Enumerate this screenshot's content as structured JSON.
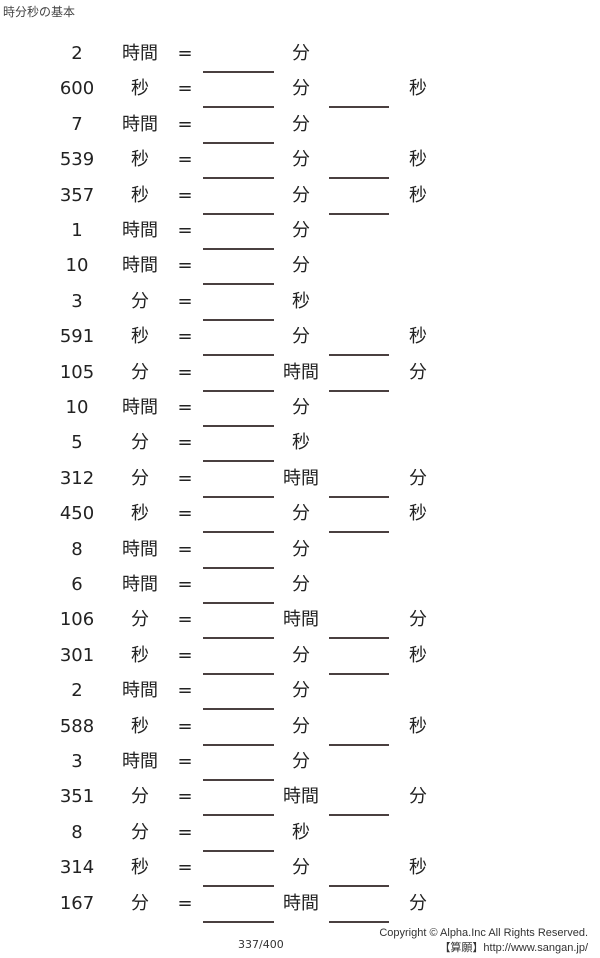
{
  "title": "時分秒の基本",
  "equals": "=",
  "rows": [
    {
      "n": "2",
      "u1": "時間",
      "u2": "分",
      "u3": ""
    },
    {
      "n": "600",
      "u1": "秒",
      "u2": "分",
      "u3": "秒"
    },
    {
      "n": "7",
      "u1": "時間",
      "u2": "分",
      "u3": ""
    },
    {
      "n": "539",
      "u1": "秒",
      "u2": "分",
      "u3": "秒"
    },
    {
      "n": "357",
      "u1": "秒",
      "u2": "分",
      "u3": "秒"
    },
    {
      "n": "1",
      "u1": "時間",
      "u2": "分",
      "u3": ""
    },
    {
      "n": "10",
      "u1": "時間",
      "u2": "分",
      "u3": ""
    },
    {
      "n": "3",
      "u1": "分",
      "u2": "秒",
      "u3": ""
    },
    {
      "n": "591",
      "u1": "秒",
      "u2": "分",
      "u3": "秒"
    },
    {
      "n": "105",
      "u1": "分",
      "u2": "時間",
      "u3": "分"
    },
    {
      "n": "10",
      "u1": "時間",
      "u2": "分",
      "u3": ""
    },
    {
      "n": "5",
      "u1": "分",
      "u2": "秒",
      "u3": ""
    },
    {
      "n": "312",
      "u1": "分",
      "u2": "時間",
      "u3": "分"
    },
    {
      "n": "450",
      "u1": "秒",
      "u2": "分",
      "u3": "秒"
    },
    {
      "n": "8",
      "u1": "時間",
      "u2": "分",
      "u3": ""
    },
    {
      "n": "6",
      "u1": "時間",
      "u2": "分",
      "u3": ""
    },
    {
      "n": "106",
      "u1": "分",
      "u2": "時間",
      "u3": "分"
    },
    {
      "n": "301",
      "u1": "秒",
      "u2": "分",
      "u3": "秒"
    },
    {
      "n": "2",
      "u1": "時間",
      "u2": "分",
      "u3": ""
    },
    {
      "n": "588",
      "u1": "秒",
      "u2": "分",
      "u3": "秒"
    },
    {
      "n": "3",
      "u1": "時間",
      "u2": "分",
      "u3": ""
    },
    {
      "n": "351",
      "u1": "分",
      "u2": "時間",
      "u3": "分"
    },
    {
      "n": "8",
      "u1": "分",
      "u2": "秒",
      "u3": ""
    },
    {
      "n": "314",
      "u1": "秒",
      "u2": "分",
      "u3": "秒"
    },
    {
      "n": "167",
      "u1": "分",
      "u2": "時間",
      "u3": "分"
    }
  ],
  "footer": {
    "page": "337/400",
    "copyright": "Copyright © Alpha.Inc All Rights Reserved.",
    "site": "【算願】http://www.sangan.jp/"
  }
}
